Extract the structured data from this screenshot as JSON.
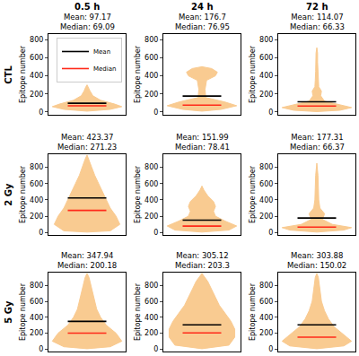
{
  "columns": [
    "0.5 h",
    "24 h",
    "72 h"
  ],
  "rows": [
    "CTL",
    "2 Gy",
    "5 Gy"
  ],
  "chart_data": [
    {
      "type": "violin",
      "title": [
        "Mean: 97.17",
        "Median: 69.09"
      ],
      "y_label": "Epitope number",
      "xlim": [
        -1,
        1
      ],
      "ylim": [
        -30,
        860
      ],
      "yticks": [
        0,
        200,
        400,
        600,
        800
      ],
      "tick_labels": "y",
      "color": "#f9c27e",
      "legend": "upper right",
      "density": {
        "y": [
          10,
          30,
          60,
          90,
          130,
          180,
          230,
          280,
          300
        ],
        "half_width": [
          0,
          0.6,
          0.9,
          0.7,
          0.35,
          0.15,
          0.08,
          0.03,
          0
        ]
      },
      "series": [
        {
          "name": "Mean",
          "color": "#000000",
          "values": [
            97.17
          ]
        },
        {
          "name": "Median",
          "color": "#ff2a1a",
          "values": [
            69.09
          ]
        }
      ]
    },
    {
      "type": "violin",
      "title": [
        "Mean: 176.7",
        "Median: 76.95"
      ],
      "y_label": "Epitope number",
      "xlim": [
        -1,
        1
      ],
      "ylim": [
        -30,
        860
      ],
      "yticks": [
        0,
        200,
        400,
        600,
        800
      ],
      "tick_labels": "y",
      "color": "#f9c27e",
      "density": {
        "y": [
          10,
          30,
          70,
          110,
          160,
          250,
          350,
          400,
          440,
          480,
          500
        ],
        "half_width": [
          0,
          0.5,
          0.9,
          0.6,
          0.1,
          0.08,
          0.12,
          0.35,
          0.4,
          0.25,
          0
        ]
      },
      "series": [
        {
          "name": "Mean",
          "color": "#000000",
          "values": [
            176.7
          ]
        },
        {
          "name": "Median",
          "color": "#ff2a1a",
          "values": [
            76.95
          ]
        }
      ]
    },
    {
      "type": "violin",
      "title": [
        "Mean: 114.07",
        "Median: 66.33"
      ],
      "y_label": "Epitope number",
      "xlim": [
        -1,
        1
      ],
      "ylim": [
        -30,
        860
      ],
      "yticks": [
        0,
        200,
        400,
        600,
        800
      ],
      "tick_labels": "y",
      "color": "#f9c27e",
      "density": {
        "y": [
          5,
          20,
          50,
          80,
          120,
          180,
          230,
          280,
          350,
          450,
          550,
          650,
          710
        ],
        "half_width": [
          0,
          0.6,
          0.9,
          0.6,
          0.2,
          0.1,
          0.12,
          0.05,
          0.04,
          0.03,
          0.02,
          0.02,
          0
        ]
      },
      "series": [
        {
          "name": "Mean",
          "color": "#000000",
          "values": [
            114.07
          ]
        },
        {
          "name": "Median",
          "color": "#ff2a1a",
          "values": [
            66.33
          ]
        }
      ]
    },
    {
      "type": "violin",
      "title": [
        "Mean: 423.37",
        "Median: 271.23"
      ],
      "y_label": "Epitope number",
      "xlim": [
        -1,
        1
      ],
      "ylim": [
        -30,
        960
      ],
      "yticks": [
        0,
        200,
        400,
        600,
        800
      ],
      "tick_labels": "y",
      "color": "#f9c27e",
      "density": {
        "y": [
          5,
          20,
          100,
          200,
          300,
          400,
          500,
          600,
          700,
          800,
          900,
          950
        ],
        "half_width": [
          0,
          0.6,
          0.85,
          0.75,
          0.6,
          0.5,
          0.4,
          0.3,
          0.2,
          0.12,
          0.05,
          0
        ]
      },
      "series": [
        {
          "name": "Mean",
          "color": "#000000",
          "values": [
            423.37
          ]
        },
        {
          "name": "Median",
          "color": "#ff2a1a",
          "values": [
            271.23
          ]
        }
      ]
    },
    {
      "type": "violin",
      "title": [
        "Mean: 151.99",
        "Median: 78.41"
      ],
      "y_label": "Epitope number",
      "xlim": [
        -1,
        1
      ],
      "ylim": [
        -30,
        960
      ],
      "yticks": [
        0,
        200,
        400,
        600,
        800
      ],
      "tick_labels": "y",
      "color": "#f9c27e",
      "density": {
        "y": [
          5,
          30,
          80,
          140,
          200,
          260,
          320,
          380,
          450,
          520,
          570
        ],
        "half_width": [
          0,
          0.7,
          0.9,
          0.6,
          0.35,
          0.3,
          0.35,
          0.3,
          0.15,
          0.05,
          0
        ]
      },
      "series": [
        {
          "name": "Mean",
          "color": "#000000",
          "values": [
            151.99
          ]
        },
        {
          "name": "Median",
          "color": "#ff2a1a",
          "values": [
            78.41
          ]
        }
      ]
    },
    {
      "type": "violin",
      "title": [
        "Mean: 177.31",
        "Median: 66.37"
      ],
      "y_label": "Epitope number",
      "xlim": [
        -1,
        1
      ],
      "ylim": [
        -30,
        960
      ],
      "yticks": [
        0,
        200,
        400,
        600,
        800
      ],
      "tick_labels": "y",
      "color": "#f9c27e",
      "density": {
        "y": [
          5,
          30,
          60,
          100,
          160,
          230,
          300,
          400,
          550,
          700,
          850
        ],
        "half_width": [
          0,
          0.7,
          0.9,
          0.4,
          0.15,
          0.2,
          0.08,
          0.05,
          0.04,
          0.03,
          0
        ]
      },
      "series": [
        {
          "name": "Mean",
          "color": "#000000",
          "values": [
            177.31
          ]
        },
        {
          "name": "Median",
          "color": "#ff2a1a",
          "values": [
            66.37
          ]
        }
      ]
    },
    {
      "type": "violin",
      "title": [
        "Mean: 347.94",
        "Median: 200.18"
      ],
      "y_label": "Epitope number",
      "xlim": [
        -1,
        1
      ],
      "ylim": [
        -30,
        960
      ],
      "yticks": [
        0,
        200,
        400,
        600,
        800
      ],
      "tick_labels": "y",
      "color": "#f9c27e",
      "density": {
        "y": [
          5,
          30,
          100,
          200,
          300,
          400,
          500,
          600,
          700,
          800,
          900,
          950
        ],
        "half_width": [
          0,
          0.6,
          0.9,
          0.75,
          0.5,
          0.35,
          0.25,
          0.2,
          0.15,
          0.1,
          0.05,
          0
        ]
      },
      "series": [
        {
          "name": "Mean",
          "color": "#000000",
          "values": [
            347.94
          ]
        },
        {
          "name": "Median",
          "color": "#ff2a1a",
          "values": [
            200.18
          ]
        }
      ]
    },
    {
      "type": "violin",
      "title": [
        "Mean: 305.12",
        "Median: 203.3"
      ],
      "y_label": "Epitope number",
      "xlim": [
        -1,
        1
      ],
      "ylim": [
        -30,
        960
      ],
      "yticks": [
        0,
        200,
        400,
        600,
        800
      ],
      "tick_labels": "y",
      "color": "#f9c27e",
      "density": {
        "y": [
          5,
          50,
          150,
          250,
          350,
          450,
          550,
          650,
          750,
          850,
          950
        ],
        "half_width": [
          0,
          0.7,
          0.85,
          0.85,
          0.75,
          0.6,
          0.45,
          0.35,
          0.25,
          0.15,
          0
        ]
      },
      "series": [
        {
          "name": "Mean",
          "color": "#000000",
          "values": [
            305.12
          ]
        },
        {
          "name": "Median",
          "color": "#ff2a1a",
          "values": [
            203.3
          ]
        }
      ]
    },
    {
      "type": "violin",
      "title": [
        "Mean: 303.88",
        "Median: 150.02"
      ],
      "y_label": "Epitope number",
      "xlim": [
        -1,
        1
      ],
      "ylim": [
        -30,
        960
      ],
      "yticks": [
        0,
        200,
        400,
        600,
        800
      ],
      "tick_labels": "y",
      "color": "#f9c27e",
      "density": {
        "y": [
          5,
          40,
          100,
          180,
          280,
          380,
          480,
          600,
          750,
          900,
          950
        ],
        "half_width": [
          0,
          0.7,
          0.9,
          0.7,
          0.45,
          0.3,
          0.2,
          0.12,
          0.08,
          0.04,
          0
        ]
      },
      "series": [
        {
          "name": "Mean",
          "color": "#000000",
          "values": [
            303.88
          ]
        },
        {
          "name": "Median",
          "color": "#ff2a1a",
          "values": [
            150.02
          ]
        }
      ]
    }
  ]
}
